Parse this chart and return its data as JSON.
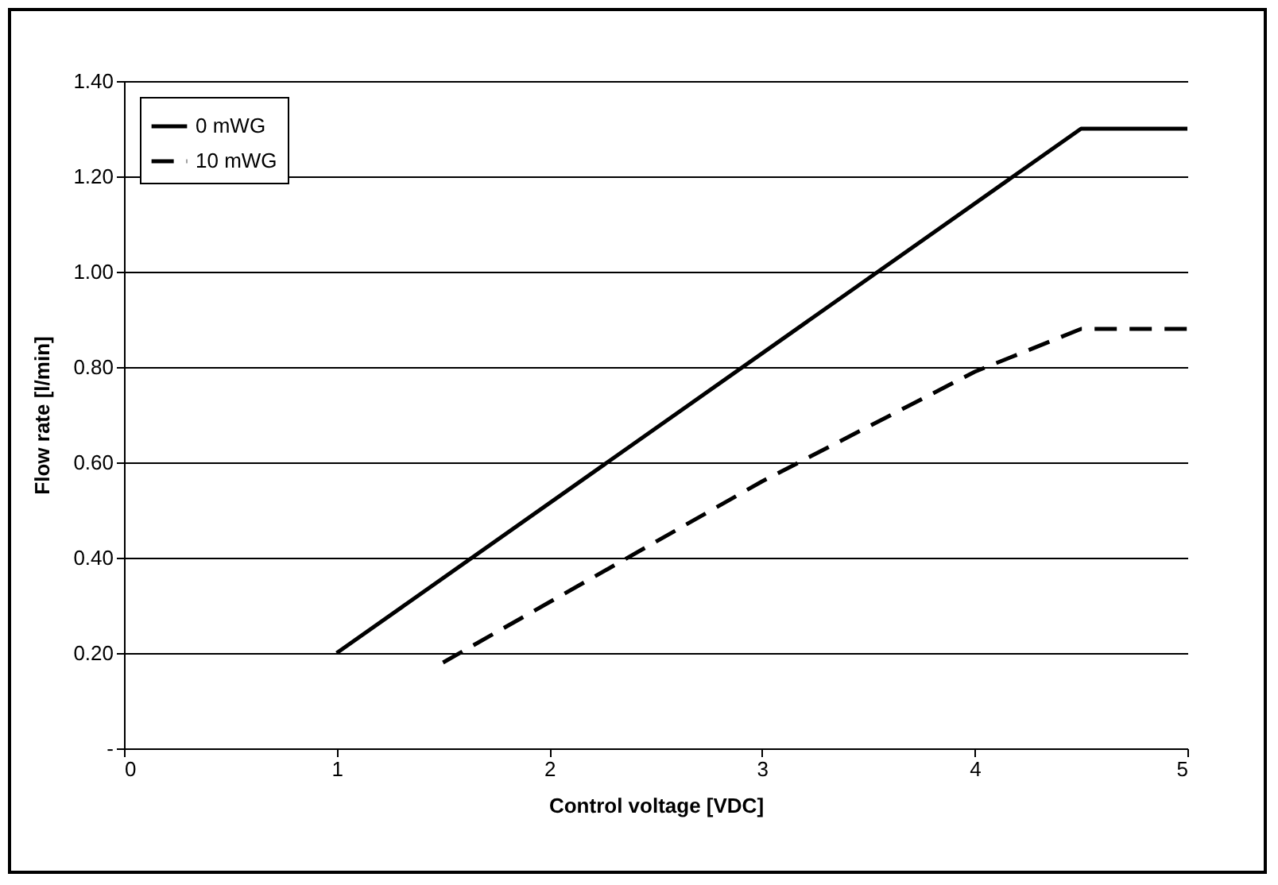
{
  "chart_data": {
    "type": "line",
    "xlabel": "Control voltage [VDC]",
    "ylabel": "Flow rate [l/min]",
    "series": [
      {
        "name": "0 mWG",
        "color": "#000000",
        "line_style": "solid",
        "x": [
          1,
          4.5,
          5
        ],
        "values": [
          0.2,
          1.3,
          1.3
        ]
      },
      {
        "name": "10 mWG",
        "color": "#000000",
        "line_style": "dashed",
        "x": [
          1.5,
          3,
          4,
          4.5,
          5
        ],
        "values": [
          0.18,
          0.56,
          0.79,
          0.88,
          0.88
        ]
      }
    ],
    "xlim": [
      0,
      5
    ],
    "xticks": [
      0,
      1,
      2,
      3,
      4,
      5
    ],
    "ylim": [
      0,
      1.4
    ],
    "yticks": [
      {
        "value": 0,
        "label": "-"
      },
      {
        "value": 0.2,
        "label": "0.20"
      },
      {
        "value": 0.4,
        "label": "0.40"
      },
      {
        "value": 0.6,
        "label": "0.60"
      },
      {
        "value": 0.8,
        "label": "0.80"
      },
      {
        "value": 1.0,
        "label": "1.00"
      },
      {
        "value": 1.2,
        "label": "1.20"
      },
      {
        "value": 1.4,
        "label": "1.40"
      }
    ],
    "grid": "y",
    "legend": "top left",
    "marker": "none"
  }
}
